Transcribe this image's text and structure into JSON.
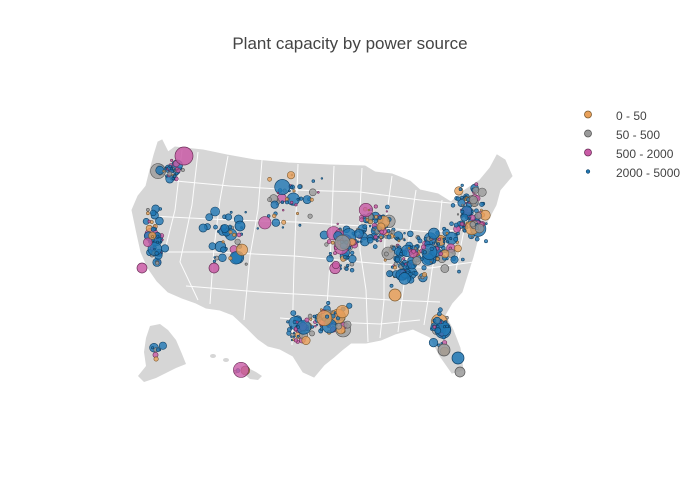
{
  "title": "Plant capacity by power source",
  "legend": [
    {
      "label": "0 - 50",
      "color": "#E8A05A",
      "marker": "ring-dot"
    },
    {
      "label": "50 - 500",
      "color": "#9A9A9A",
      "marker": "ring-dot"
    },
    {
      "label": "500 - 2000",
      "color": "#C95BA6",
      "marker": "ring-dot"
    },
    {
      "label": "2000 - 5000",
      "color": "#1F77B4",
      "marker": "small-dot"
    }
  ],
  "map": {
    "land_color": "#D6D6D6",
    "border_color": "#FFFFFF",
    "region": "USA (Albers, with Alaska & Hawaii insets)"
  }
}
